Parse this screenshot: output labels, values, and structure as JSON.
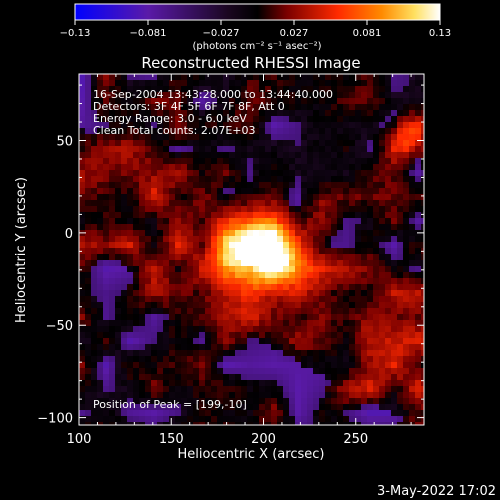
{
  "chart_data": {
    "type": "heatmap",
    "title": "Reconstructed RHESSI Image",
    "xlabel": "Heliocentric X (arcsec)",
    "ylabel": "Heliocentric Y (arcsec)",
    "xlim": [
      100,
      287
    ],
    "ylim": [
      -104,
      86
    ],
    "x_ticks": [
      100,
      150,
      200,
      250
    ],
    "y_ticks": [
      -100,
      -50,
      0,
      50
    ],
    "colorbar": {
      "range": [
        -0.13,
        0.13
      ],
      "tick_labels": [
        "-0.13",
        "-0.081",
        "-0.027",
        "0.027",
        "0.081",
        "0.13"
      ],
      "unit_label": "(photons cm⁻² s⁻¹ asec⁻²)",
      "colors": [
        "#0000ff",
        "#5a1aa8",
        "#2a0a30",
        "#000000",
        "#7a0000",
        "#ff2a00",
        "#ff8a00",
        "#ffe060",
        "#ffffff"
      ]
    },
    "annotations": [
      "16-Sep-2004 13:43:28.000 to 13:44:40.000",
      "Detectors: 3F 4F 5F 6F 7F 8F, Att 0",
      "Energy Range: 3.0 - 6.0 keV",
      "Clean     Total counts: 2.07E+03"
    ],
    "peak_label": "Position of Peak = [199,-10]",
    "peak": {
      "x": 199,
      "y": -10
    },
    "secondary_source": {
      "x": 278,
      "y": 52
    },
    "timestamp": "3-May-2022 17:02"
  }
}
